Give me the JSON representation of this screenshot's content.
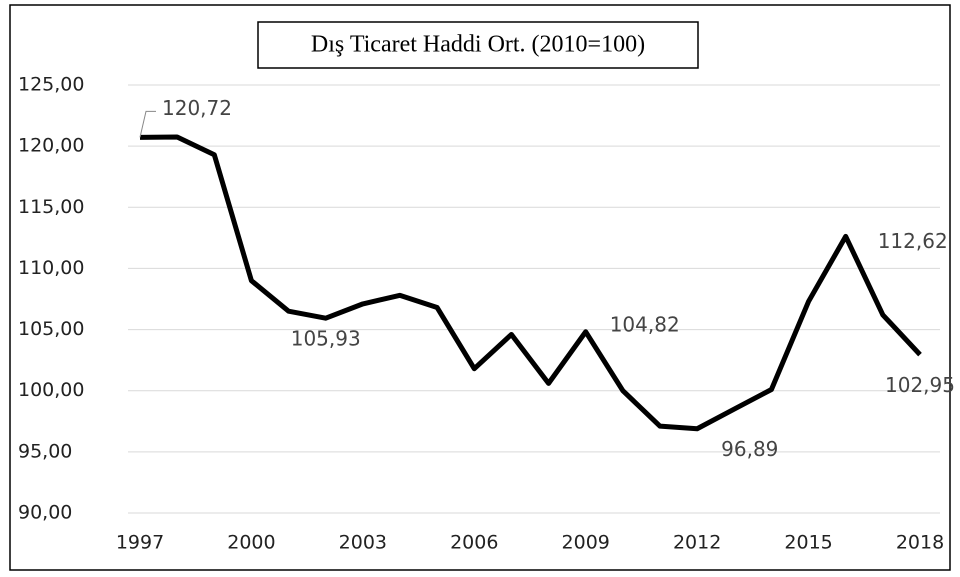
{
  "chart_data": {
    "type": "line",
    "title": "Dış Ticaret Haddi Ort. (2010=100)",
    "x": [
      1997,
      1998,
      1999,
      2000,
      2001,
      2002,
      2003,
      2004,
      2005,
      2006,
      2007,
      2008,
      2009,
      2010,
      2011,
      2012,
      2013,
      2014,
      2015,
      2016,
      2017,
      2018
    ],
    "values": [
      120.72,
      120.75,
      119.3,
      109.0,
      106.5,
      105.93,
      107.1,
      107.8,
      106.8,
      101.8,
      104.6,
      100.6,
      104.82,
      100.0,
      97.1,
      96.89,
      98.5,
      100.1,
      107.3,
      112.62,
      106.2,
      102.95
    ],
    "value_labels": [
      "120,72",
      null,
      null,
      null,
      null,
      "105,93",
      null,
      null,
      null,
      null,
      null,
      null,
      "104,82",
      null,
      null,
      "96,89",
      null,
      null,
      null,
      "112,62",
      null,
      "102,95"
    ],
    "color": "#000000",
    "xlim": [
      1997,
      2018
    ],
    "xticks": [
      1997,
      2000,
      2003,
      2006,
      2009,
      2012,
      2015,
      2018
    ],
    "ylim": [
      90,
      125
    ],
    "yticks": [
      {
        "value": 90,
        "label": "90,00"
      },
      {
        "value": 95,
        "label": "95,00"
      },
      {
        "value": 100,
        "label": "100,00"
      },
      {
        "value": 105,
        "label": "105,00"
      },
      {
        "value": 110,
        "label": "110,00"
      },
      {
        "value": 115,
        "label": "115,00"
      },
      {
        "value": 120,
        "label": "120,00"
      },
      {
        "value": 125,
        "label": "125,00"
      }
    ],
    "grid": true
  }
}
